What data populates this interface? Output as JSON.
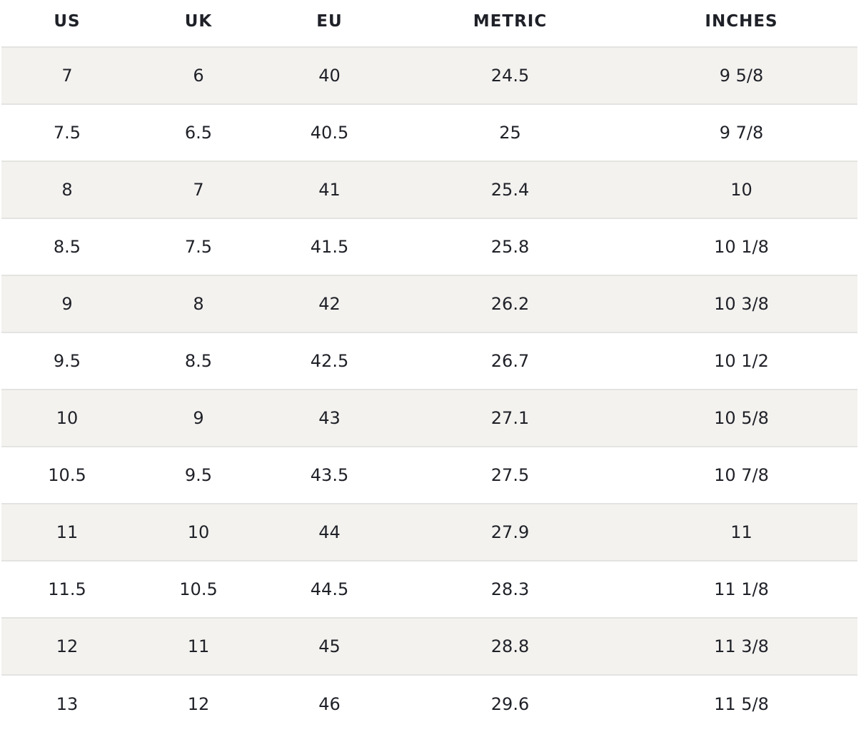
{
  "size_chart": {
    "headers": {
      "us": "US",
      "uk": "UK",
      "eu": "EU",
      "metric": "METRIC",
      "inches": "INCHES"
    },
    "rows": [
      {
        "us": "7",
        "uk": "6",
        "eu": "40",
        "metric": "24.5",
        "inches": "9 5/8"
      },
      {
        "us": "7.5",
        "uk": "6.5",
        "eu": "40.5",
        "metric": "25",
        "inches": "9 7/8"
      },
      {
        "us": "8",
        "uk": "7",
        "eu": "41",
        "metric": "25.4",
        "inches": "10"
      },
      {
        "us": "8.5",
        "uk": "7.5",
        "eu": "41.5",
        "metric": "25.8",
        "inches": "10 1/8"
      },
      {
        "us": "9",
        "uk": "8",
        "eu": "42",
        "metric": "26.2",
        "inches": "10 3/8"
      },
      {
        "us": "9.5",
        "uk": "8.5",
        "eu": "42.5",
        "metric": "26.7",
        "inches": "10 1/2"
      },
      {
        "us": "10",
        "uk": "9",
        "eu": "43",
        "metric": "27.1",
        "inches": "10 5/8"
      },
      {
        "us": "10.5",
        "uk": "9.5",
        "eu": "43.5",
        "metric": "27.5",
        "inches": "10 7/8"
      },
      {
        "us": "11",
        "uk": "10",
        "eu": "44",
        "metric": "27.9",
        "inches": "11"
      },
      {
        "us": "11.5",
        "uk": "10.5",
        "eu": "44.5",
        "metric": "28.3",
        "inches": "11 1/8"
      },
      {
        "us": "12",
        "uk": "11",
        "eu": "45",
        "metric": "28.8",
        "inches": "11 3/8"
      },
      {
        "us": "13",
        "uk": "12",
        "eu": "46",
        "metric": "29.6",
        "inches": "11 5/8"
      }
    ]
  },
  "colors": {
    "text": "#1f2128",
    "stripe": "#f3f2ef",
    "divider": "#e3e3e1",
    "background": "#ffffff"
  }
}
